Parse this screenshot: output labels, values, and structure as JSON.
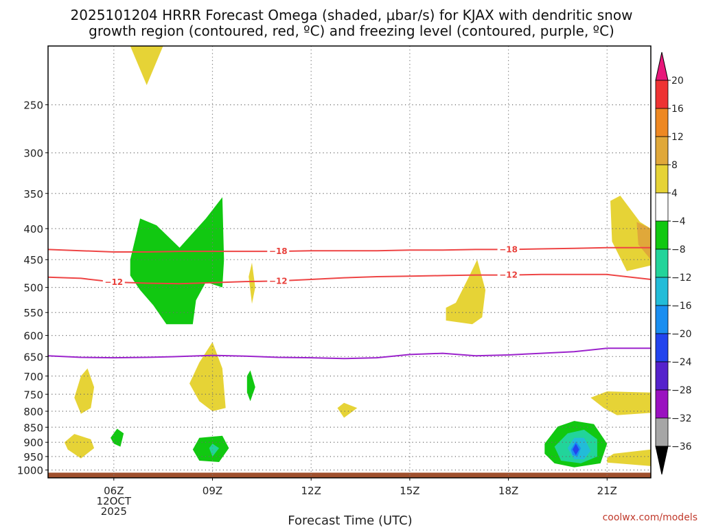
{
  "chart_data": {
    "type": "heatmap",
    "title_lines": [
      "2025101204 HRRR Forecast Omega (shaded, μbar/s) for KJAX with dendritic snow",
      "growth region (contoured, red, ºC) and freezing level (contoured, purple, ºC)"
    ],
    "xlabel": "Forecast Time (UTC)",
    "credit": "coolwx.com/models",
    "x_range_hours": [
      4,
      22.33
    ],
    "y_range_hpa": [
      1030,
      200
    ],
    "x_ticks": [
      {
        "hour": 6,
        "lines": [
          "06Z",
          "12OCT",
          "2025"
        ]
      },
      {
        "hour": 9,
        "lines": [
          "09Z"
        ]
      },
      {
        "hour": 12,
        "lines": [
          "12Z"
        ]
      },
      {
        "hour": 15,
        "lines": [
          "15Z"
        ]
      },
      {
        "hour": 18,
        "lines": [
          "18Z"
        ]
      },
      {
        "hour": 21,
        "lines": [
          "21Z"
        ]
      }
    ],
    "y_ticks": [
      250,
      300,
      350,
      400,
      450,
      500,
      550,
      600,
      650,
      700,
      750,
      800,
      850,
      900,
      950,
      1000
    ],
    "grid": true,
    "colorbar": {
      "labels": [
        "20",
        "16",
        "12",
        "8",
        "4",
        "−4",
        "−8",
        "−12",
        "−16",
        "−20",
        "−24",
        "−28",
        "−32",
        "−36"
      ],
      "colors": [
        "#ee3333",
        "#ee8822",
        "#e0a83a",
        "#e6d336",
        "#ffffff",
        "#11c811",
        "#22d49a",
        "#22bcd8",
        "#1a8ef0",
        "#2244ee",
        "#5522cc",
        "#9a11c0",
        "#a6a6a6"
      ],
      "top_arrow": "#e8177a",
      "bottom_arrow": "#000000"
    },
    "contours_dgz": [
      {
        "label": "−18",
        "color": "#ee4444",
        "x": [
          4,
          5,
          6,
          7,
          8,
          9,
          10,
          11,
          12,
          13,
          14,
          15,
          16,
          17,
          18,
          19,
          20,
          21,
          22.33
        ],
        "p": [
          433,
          435,
          437,
          437,
          436,
          436,
          436,
          436,
          435,
          435,
          435,
          434,
          434,
          433,
          433,
          432,
          431,
          430,
          430
        ]
      },
      {
        "label": "−12",
        "color": "#ee4444",
        "x": [
          4,
          5,
          6,
          7,
          8,
          9,
          10,
          11,
          12,
          13,
          14,
          15,
          16,
          17,
          18,
          19,
          20,
          21,
          22.33
        ],
        "p": [
          481,
          483,
          490,
          492,
          493,
          491,
          489,
          488,
          485,
          482,
          480,
          479,
          478,
          477,
          477,
          476,
          476,
          476,
          485
        ]
      }
    ],
    "contour_freezing": {
      "label": "0",
      "color": "#9b22cc",
      "x": [
        4,
        5,
        6,
        7,
        8,
        9,
        10,
        11,
        12,
        13,
        14,
        15,
        16,
        17,
        18,
        19,
        20,
        21,
        22.33
      ],
      "p": [
        648,
        652,
        653,
        652,
        650,
        647,
        649,
        652,
        653,
        655,
        653,
        645,
        642,
        648,
        646,
        642,
        638,
        630,
        630
      ]
    },
    "shaded_regions": [
      {
        "value": 6,
        "pts": [
          [
            6.5,
            200
          ],
          [
            7.5,
            200
          ],
          [
            7,
            232
          ]
        ]
      },
      {
        "value": -6,
        "pts": [
          [
            6.5,
            450
          ],
          [
            6.8,
            385
          ],
          [
            7.3,
            395
          ],
          [
            8,
            430
          ],
          [
            8.8,
            385
          ],
          [
            9.3,
            355
          ],
          [
            9.35,
            450
          ],
          [
            9.3,
            500
          ],
          [
            8.8,
            490
          ],
          [
            8.5,
            525
          ],
          [
            8.4,
            575
          ],
          [
            7.6,
            575
          ],
          [
            7.2,
            535
          ],
          [
            6.8,
            505
          ],
          [
            6.5,
            478
          ]
        ]
      },
      {
        "value": 6,
        "pts": [
          [
            10.1,
            480
          ],
          [
            10.2,
            455
          ],
          [
            10.3,
            500
          ],
          [
            10.2,
            532
          ]
        ]
      },
      {
        "value": 6,
        "pts": [
          [
            16.1,
            540
          ],
          [
            16.4,
            530
          ],
          [
            16.8,
            480
          ],
          [
            17.05,
            450
          ],
          [
            17.3,
            505
          ],
          [
            17.2,
            560
          ],
          [
            16.9,
            575
          ],
          [
            16.1,
            567
          ]
        ]
      },
      {
        "value": 6,
        "pts": [
          [
            21.1,
            360
          ],
          [
            21.4,
            353
          ],
          [
            22,
            390
          ],
          [
            22.33,
            400
          ],
          [
            22.33,
            460
          ],
          [
            21.6,
            470
          ],
          [
            21.15,
            420
          ]
        ]
      },
      {
        "value": 10,
        "pts": [
          [
            21.9,
            390
          ],
          [
            22.33,
            400
          ],
          [
            22.33,
            450
          ],
          [
            21.95,
            425
          ]
        ]
      },
      {
        "value": 6,
        "pts": [
          [
            5,
            700
          ],
          [
            5.2,
            680
          ],
          [
            5.4,
            730
          ],
          [
            5.3,
            790
          ],
          [
            5,
            808
          ],
          [
            4.8,
            760
          ]
        ]
      },
      {
        "value": 6,
        "pts": [
          [
            4.5,
            900
          ],
          [
            4.8,
            872
          ],
          [
            5.3,
            890
          ],
          [
            5.4,
            920
          ],
          [
            5,
            957
          ],
          [
            4.6,
            925
          ]
        ]
      },
      {
        "value": -6,
        "pts": [
          [
            5.9,
            885
          ],
          [
            6.1,
            855
          ],
          [
            6.3,
            870
          ],
          [
            6.2,
            915
          ],
          [
            6,
            905
          ]
        ]
      },
      {
        "value": 6,
        "pts": [
          [
            8.3,
            720
          ],
          [
            8.6,
            665
          ],
          [
            9,
            615
          ],
          [
            9.3,
            680
          ],
          [
            9.4,
            790
          ],
          [
            9,
            800
          ],
          [
            8.6,
            770
          ]
        ]
      },
      {
        "value": -6,
        "pts": [
          [
            10.05,
            700
          ],
          [
            10.15,
            685
          ],
          [
            10.3,
            730
          ],
          [
            10.15,
            770
          ],
          [
            10.05,
            745
          ]
        ]
      },
      {
        "value": -6,
        "pts": [
          [
            8.4,
            925
          ],
          [
            8.6,
            885
          ],
          [
            9.3,
            878
          ],
          [
            9.5,
            920
          ],
          [
            9.2,
            970
          ],
          [
            8.6,
            965
          ]
        ]
      },
      {
        "value": -10,
        "pts": [
          [
            8.9,
            920
          ],
          [
            9,
            905
          ],
          [
            9.2,
            920
          ],
          [
            9,
            950
          ]
        ]
      },
      {
        "value": 6,
        "pts": [
          [
            12.8,
            790
          ],
          [
            13,
            775
          ],
          [
            13.4,
            790
          ],
          [
            13,
            820
          ]
        ]
      },
      {
        "value": -6,
        "pts": [
          [
            19.1,
            905
          ],
          [
            19.5,
            848
          ],
          [
            20,
            830
          ],
          [
            20.6,
            840
          ],
          [
            21,
            905
          ],
          [
            20.8,
            975
          ],
          [
            20,
            990
          ],
          [
            19.4,
            975
          ],
          [
            19.1,
            940
          ]
        ]
      },
      {
        "value": -10,
        "pts": [
          [
            19.4,
            915
          ],
          [
            19.8,
            870
          ],
          [
            20.3,
            858
          ],
          [
            20.7,
            890
          ],
          [
            20.7,
            950
          ],
          [
            20.2,
            975
          ],
          [
            19.6,
            965
          ]
        ]
      },
      {
        "value": -14,
        "pts": [
          [
            19.8,
            920
          ],
          [
            20,
            885
          ],
          [
            20.3,
            885
          ],
          [
            20.5,
            930
          ],
          [
            20.3,
            960
          ],
          [
            20,
            960
          ]
        ]
      },
      {
        "value": -18,
        "pts": [
          [
            19.9,
            925
          ],
          [
            20.05,
            897
          ],
          [
            20.2,
            920
          ],
          [
            20.1,
            950
          ],
          [
            19.95,
            945
          ]
        ]
      },
      {
        "value": -22,
        "pts": [
          [
            19.95,
            925
          ],
          [
            20.05,
            905
          ],
          [
            20.15,
            925
          ],
          [
            20.05,
            945
          ]
        ]
      },
      {
        "value": 6,
        "pts": [
          [
            20.5,
            760
          ],
          [
            21,
            742
          ],
          [
            22.33,
            745
          ],
          [
            22.33,
            805
          ],
          [
            21.3,
            812
          ],
          [
            20.9,
            790
          ]
        ]
      },
      {
        "value": 6,
        "pts": [
          [
            21,
            955
          ],
          [
            21.2,
            940
          ],
          [
            22.33,
            925
          ],
          [
            22.33,
            985
          ],
          [
            21.3,
            975
          ],
          [
            21,
            972
          ]
        ]
      }
    ],
    "ground": {
      "color": "#a0502d",
      "from_hpa": 1010
    }
  }
}
